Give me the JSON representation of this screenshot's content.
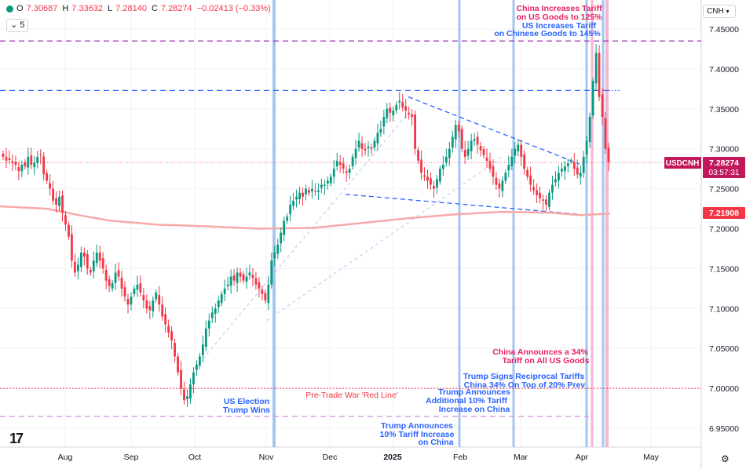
{
  "ohlc": {
    "open_label": "O",
    "open": "7.30687",
    "high_label": "H",
    "high": "7.33632",
    "low_label": "L",
    "low": "7.28140",
    "close_label": "C",
    "close": "7.28274",
    "change": "−0.02413 (−0.33%)"
  },
  "legend_collapse": "5",
  "currency": "CNH",
  "colors": {
    "up": "#089981",
    "down": "#f23645",
    "ma": "#f7a9a8",
    "purple_dash": "#9c27b0",
    "blue_dash": "#2962ff",
    "red_dot": "#f23645",
    "pink_dash": "#ce93d8",
    "blue_text": "#2962ff",
    "pink_text": "#e91e63",
    "vline_blue": "#90b8f0",
    "vline_pink": "#f0a6c8"
  },
  "chart_data": {
    "type": "candlestick",
    "symbol": "USDCNH",
    "ylim": [
      6.915,
      7.475
    ],
    "y_ticks": [
      "7.45000",
      "7.40000",
      "7.35000",
      "7.30000",
      "7.25000",
      "7.20000",
      "7.15000",
      "7.10000",
      "7.05000",
      "7.00000",
      "6.95000"
    ],
    "x_labels": [
      "Aug",
      "Sep",
      "Oct",
      "Nov",
      "Dec",
      "2025",
      "Feb",
      "Mar",
      "Apr",
      "May"
    ],
    "price_label": {
      "symbol": "USDCNH",
      "price": "7.28274",
      "countdown": "03:57:31"
    },
    "ma_label": "7.21908",
    "ma_points": [
      [
        0,
        7.228
      ],
      [
        60,
        7.225
      ],
      [
        100,
        7.217
      ],
      [
        140,
        7.21
      ],
      [
        200,
        7.205
      ],
      [
        260,
        7.203
      ],
      [
        330,
        7.2
      ],
      [
        400,
        7.201
      ],
      [
        460,
        7.207
      ],
      [
        520,
        7.213
      ],
      [
        580,
        7.218
      ],
      [
        640,
        7.221
      ],
      [
        700,
        7.22
      ],
      [
        740,
        7.217
      ],
      [
        777,
        7.219
      ]
    ],
    "closes": [
      7.29,
      7.285,
      7.286,
      7.282,
      7.28,
      7.272,
      7.28,
      7.278,
      7.29,
      7.28,
      7.282,
      7.29,
      7.292,
      7.268,
      7.26,
      7.25,
      7.235,
      7.23,
      7.24,
      7.22,
      7.205,
      7.19,
      7.16,
      7.145,
      7.155,
      7.17,
      7.165,
      7.15,
      7.145,
      7.16,
      7.17,
      7.16,
      7.15,
      7.135,
      7.128,
      7.132,
      7.145,
      7.14,
      7.125,
      7.115,
      7.105,
      7.115,
      7.125,
      7.13,
      7.12,
      7.11,
      7.1,
      7.098,
      7.11,
      7.12,
      7.105,
      7.09,
      7.08,
      7.07,
      7.06,
      7.04,
      7.02,
      7.0,
      6.985,
      6.99,
      7.005,
      7.02,
      7.03,
      7.04,
      7.055,
      7.075,
      7.085,
      7.095,
      7.1,
      7.11,
      7.118,
      7.125,
      7.13,
      7.14,
      7.135,
      7.145,
      7.14,
      7.135,
      7.14,
      7.145,
      7.138,
      7.13,
      7.125,
      7.118,
      7.11,
      7.13,
      7.16,
      7.17,
      7.18,
      7.195,
      7.21,
      7.215,
      7.23,
      7.235,
      7.24,
      7.245,
      7.24,
      7.25,
      7.245,
      7.25,
      7.246,
      7.248,
      7.255,
      7.255,
      7.26,
      7.265,
      7.275,
      7.285,
      7.28,
      7.275,
      7.27,
      7.275,
      7.29,
      7.3,
      7.31,
      7.3,
      7.298,
      7.303,
      7.3,
      7.31,
      7.32,
      7.325,
      7.34,
      7.35,
      7.345,
      7.348,
      7.355,
      7.36,
      7.352,
      7.348,
      7.343,
      7.34,
      7.3,
      7.285,
      7.27,
      7.265,
      7.26,
      7.255,
      7.25,
      7.262,
      7.275,
      7.28,
      7.29,
      7.3,
      7.315,
      7.33,
      7.322,
      7.3,
      7.29,
      7.3,
      7.31,
      7.312,
      7.305,
      7.298,
      7.292,
      7.285,
      7.275,
      7.265,
      7.255,
      7.25,
      7.26,
      7.27,
      7.28,
      7.29,
      7.3,
      7.305,
      7.29,
      7.275,
      7.265,
      7.255,
      7.248,
      7.242,
      7.238,
      7.235,
      7.23,
      7.245,
      7.255,
      7.262,
      7.27,
      7.275,
      7.278,
      7.282,
      7.285,
      7.275,
      7.268,
      7.27,
      7.29,
      7.31,
      7.34,
      7.385,
      7.42,
      7.365,
      7.34,
      7.3,
      7.283
    ]
  },
  "hlines": {
    "purple_level": 7.435,
    "blue_level": 7.373,
    "red_line_level": 7.0,
    "pink_level": 6.965
  },
  "annotations": {
    "china_125_line1": "China Increases Tariff",
    "china_125_line2": "on US Goods to 125%",
    "us_145_line1": "US Increases Tariff",
    "us_145_line2": "on Chinese Goods to 145%",
    "china_34_line1": "China Announces a 34%",
    "china_34_line2": "Tariff on All US Goods",
    "reciprocal_line1": "Trump Signs Reciprocal Tariffs",
    "reciprocal_line2": "China 34% On Top of 20% Prev",
    "red_line": "Pre-Trade War 'Red Line'",
    "additional_line1": "Trump Announces",
    "additional_line2": "Additional 10% Tariff",
    "additional_line3": "Increase on China",
    "election_line1": "US Election",
    "election_line2": "Trump Wins",
    "first_10_line1": "Trump Announces",
    "first_10_line2": "10% Tariff Increase",
    "first_10_line3": "on China"
  },
  "events": {
    "election_date": "2024-11-05",
    "first_tariff_date": "2025-01-20",
    "additional_tariff_date": "2025-02-27",
    "reciprocal_date": "2025-04-02",
    "china_34_date": "2025-04-04",
    "us_145_date": "2025-04-09",
    "china_125_date": "2025-04-11"
  }
}
